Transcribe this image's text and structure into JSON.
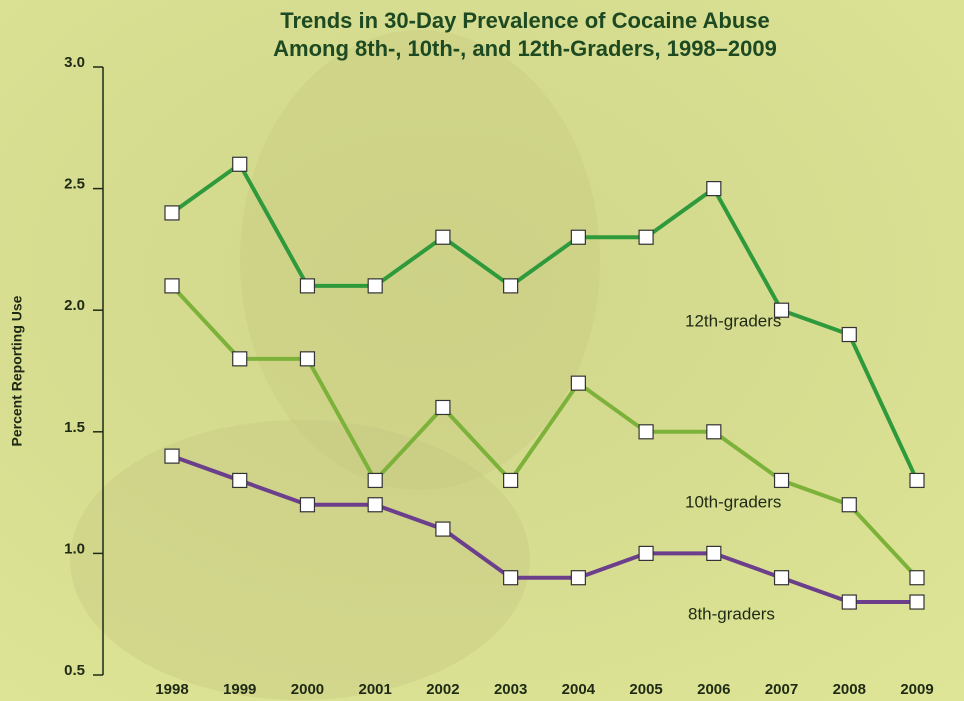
{
  "chart_data": {
    "type": "line",
    "title": [
      "Trends in 30-Day Prevalence of Cocaine Abuse",
      "Among 8th-, 10th-, and 12th-Graders, 1998–2009"
    ],
    "y_label": "Percent Reporting Use",
    "categories": [
      "1998",
      "1999",
      "2000",
      "2001",
      "2002",
      "2003",
      "2004",
      "2005",
      "2006",
      "2007",
      "2008",
      "2009"
    ],
    "series": [
      {
        "name": "12th-graders",
        "color": "#2f9a3c",
        "values": [
          2.4,
          2.6,
          2.1,
          2.1,
          2.3,
          2.1,
          2.3,
          2.3,
          2.5,
          2.0,
          1.9,
          1.3
        ]
      },
      {
        "name": "10th-graders",
        "color": "#7db23a",
        "values": [
          2.1,
          1.8,
          1.8,
          1.3,
          1.6,
          1.3,
          1.7,
          1.5,
          1.5,
          1.3,
          1.2,
          0.9
        ]
      },
      {
        "name": "8th-graders",
        "color": "#6b3f8c",
        "values": [
          1.4,
          1.3,
          1.2,
          1.2,
          1.1,
          0.9,
          0.9,
          1.0,
          1.0,
          0.9,
          0.8,
          0.8
        ]
      }
    ],
    "ylim": [
      0.5,
      3.0
    ],
    "yticks": [
      0.5,
      {
        "value": 1.0,
        "label": "1.0"
      },
      1.5,
      {
        "value": 2.0,
        "label": "2.0"
      },
      2.5,
      {
        "value": 3.0,
        "label": "3.0"
      }
    ],
    "grid": false
  }
}
